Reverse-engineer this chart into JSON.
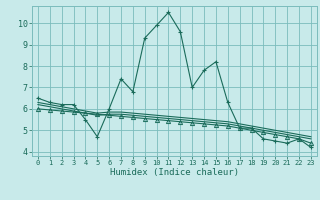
{
  "xlabel": "Humidex (Indice chaleur)",
  "bg_color": "#c8eaea",
  "grid_color": "#7bbcbc",
  "line_color": "#1a6b5a",
  "xlim": [
    -0.5,
    23.5
  ],
  "ylim": [
    3.8,
    10.8
  ],
  "xticks": [
    0,
    1,
    2,
    3,
    4,
    5,
    6,
    7,
    8,
    9,
    10,
    11,
    12,
    13,
    14,
    15,
    16,
    17,
    18,
    19,
    20,
    21,
    22,
    23
  ],
  "yticks": [
    4,
    5,
    6,
    7,
    8,
    9,
    10
  ],
  "series1_x": [
    0,
    1,
    2,
    3,
    4,
    5,
    6,
    7,
    8,
    9,
    10,
    11,
    12,
    13,
    14,
    15,
    16,
    17,
    18,
    19,
    20,
    21,
    22,
    23
  ],
  "series1_y": [
    6.5,
    6.3,
    6.2,
    6.2,
    5.5,
    4.7,
    6.0,
    7.4,
    6.8,
    9.3,
    9.9,
    10.5,
    9.6,
    7.0,
    7.8,
    8.2,
    6.3,
    5.1,
    5.1,
    4.6,
    4.5,
    4.4,
    4.6,
    4.2
  ],
  "series2_x": [
    0,
    1,
    2,
    3,
    4,
    5,
    6,
    7,
    8,
    9,
    10,
    11,
    12,
    13,
    14,
    15,
    16,
    17,
    18,
    19,
    20,
    21,
    22,
    23
  ],
  "series2_y": [
    6.3,
    6.2,
    6.1,
    6.0,
    5.9,
    5.8,
    5.85,
    5.85,
    5.8,
    5.75,
    5.7,
    5.65,
    5.6,
    5.55,
    5.5,
    5.45,
    5.4,
    5.3,
    5.2,
    5.1,
    5.0,
    4.9,
    4.8,
    4.7
  ],
  "series3_x": [
    0,
    1,
    2,
    3,
    4,
    5,
    6,
    7,
    8,
    9,
    10,
    11,
    12,
    13,
    14,
    15,
    16,
    17,
    18,
    19,
    20,
    21,
    22,
    23
  ],
  "series3_y": [
    6.2,
    6.1,
    6.0,
    5.9,
    5.8,
    5.7,
    5.75,
    5.75,
    5.7,
    5.65,
    5.6,
    5.55,
    5.5,
    5.45,
    5.4,
    5.35,
    5.3,
    5.2,
    5.1,
    5.0,
    4.9,
    4.8,
    4.7,
    4.6
  ],
  "series4_x": [
    0,
    1,
    2,
    3,
    4,
    5,
    6,
    7,
    8,
    9,
    10,
    11,
    12,
    13,
    14,
    15,
    16,
    17,
    18,
    19,
    20,
    21,
    22,
    23
  ],
  "series4_y": [
    6.0,
    5.95,
    5.9,
    5.85,
    5.8,
    5.75,
    5.7,
    5.65,
    5.6,
    5.55,
    5.5,
    5.45,
    5.4,
    5.35,
    5.3,
    5.25,
    5.2,
    5.1,
    5.0,
    4.9,
    4.8,
    4.7,
    4.6,
    4.4
  ]
}
